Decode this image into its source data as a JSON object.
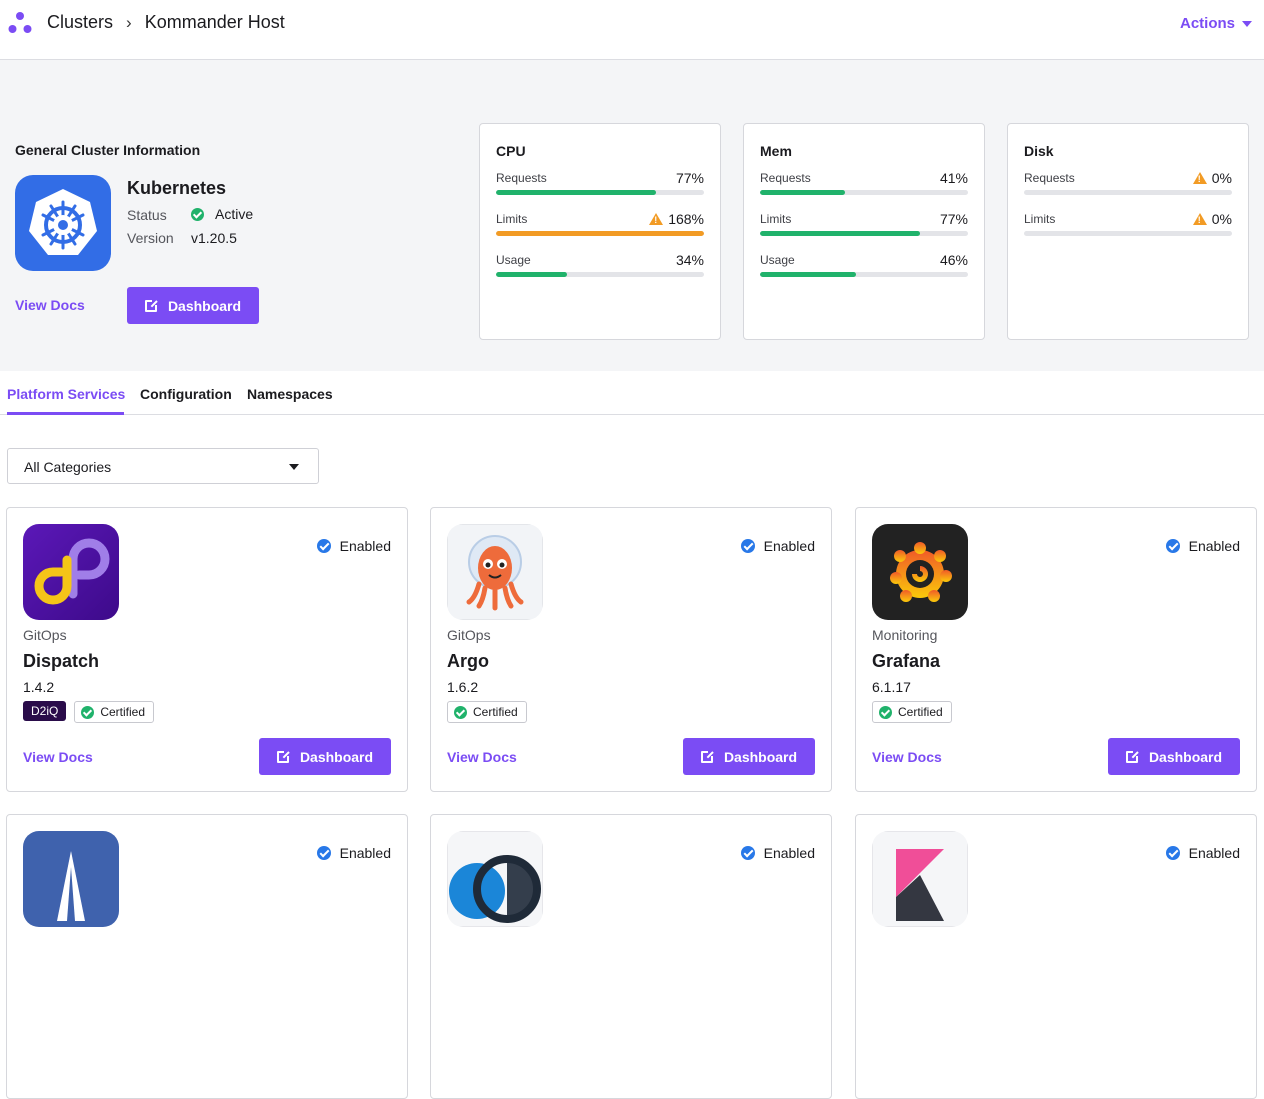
{
  "header": {
    "breadcrumb_root": "Clusters",
    "breadcrumb_current": "Kommander Host",
    "actions_label": "Actions"
  },
  "cluster": {
    "section_title": "General Cluster Information",
    "name": "Kubernetes",
    "status_label": "Status",
    "status_value": "Active",
    "version_label": "Version",
    "version_value": "v1.20.5",
    "view_docs": "View Docs",
    "dashboard": "Dashboard"
  },
  "resources": [
    {
      "title": "CPU",
      "rows": [
        {
          "label": "Requests",
          "value": "77%",
          "percent": 77,
          "warn": false,
          "color": "#20b26b"
        },
        {
          "label": "Limits",
          "value": "168%",
          "percent": 100,
          "warn": true,
          "color": "#f29b24"
        },
        {
          "label": "Usage",
          "value": "34%",
          "percent": 34,
          "warn": false,
          "color": "#20b26b"
        }
      ]
    },
    {
      "title": "Mem",
      "rows": [
        {
          "label": "Requests",
          "value": "41%",
          "percent": 41,
          "warn": false,
          "color": "#20b26b"
        },
        {
          "label": "Limits",
          "value": "77%",
          "percent": 77,
          "warn": false,
          "color": "#20b26b"
        },
        {
          "label": "Usage",
          "value": "46%",
          "percent": 46,
          "warn": false,
          "color": "#20b26b"
        }
      ]
    },
    {
      "title": "Disk",
      "rows": [
        {
          "label": "Requests",
          "value": "0%",
          "percent": 0,
          "warn": true,
          "color": "#20b26b"
        },
        {
          "label": "Limits",
          "value": "0%",
          "percent": 0,
          "warn": true,
          "color": "#20b26b"
        }
      ]
    }
  ],
  "tabs": [
    {
      "label": "Platform Services",
      "active": true
    },
    {
      "label": "Configuration",
      "active": false
    },
    {
      "label": "Namespaces",
      "active": false
    }
  ],
  "filter": {
    "selected": "All Categories"
  },
  "services": [
    {
      "category": "GitOps",
      "name": "Dispatch",
      "version": "1.4.2",
      "status": "Enabled",
      "d2iq": "D2iQ",
      "certified": "Certified",
      "view_docs": "View Docs",
      "dashboard": "Dashboard",
      "icon": "dispatch-icon"
    },
    {
      "category": "GitOps",
      "name": "Argo",
      "version": "1.6.2",
      "status": "Enabled",
      "certified": "Certified",
      "view_docs": "View Docs",
      "dashboard": "Dashboard",
      "icon": "argo-icon"
    },
    {
      "category": "Monitoring",
      "name": "Grafana",
      "version": "6.1.17",
      "status": "Enabled",
      "certified": "Certified",
      "view_docs": "View Docs",
      "dashboard": "Dashboard",
      "icon": "grafana-icon"
    },
    {
      "status": "Enabled",
      "icon": "sail-icon"
    },
    {
      "status": "Enabled",
      "icon": "circles-icon"
    },
    {
      "status": "Enabled",
      "icon": "kibana-icon"
    }
  ]
}
